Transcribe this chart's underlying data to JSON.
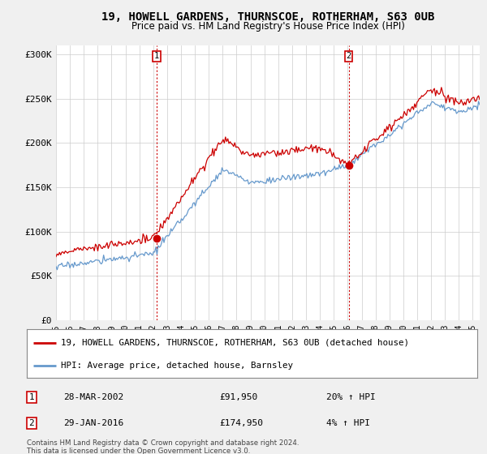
{
  "title": "19, HOWELL GARDENS, THURNSCOE, ROTHERHAM, S63 0UB",
  "subtitle": "Price paid vs. HM Land Registry's House Price Index (HPI)",
  "background_color": "#f0f0f0",
  "plot_bg_color": "#ffffff",
  "ylabel_ticks": [
    "£0",
    "£50K",
    "£100K",
    "£150K",
    "£200K",
    "£250K",
    "£300K"
  ],
  "ytick_values": [
    0,
    50000,
    100000,
    150000,
    200000,
    250000,
    300000
  ],
  "ylim": [
    0,
    310000
  ],
  "xlim_start": 1995.0,
  "xlim_end": 2025.5,
  "sale1_x": 2002.24,
  "sale1_y": 91950,
  "sale2_x": 2016.08,
  "sale2_y": 174950,
  "line1_color": "#cc0000",
  "line2_color": "#6699cc",
  "sale_marker_color": "#cc0000",
  "vline_color": "#cc0000",
  "legend_label1": "19, HOWELL GARDENS, THURNSCOE, ROTHERHAM, S63 0UB (detached house)",
  "legend_label2": "HPI: Average price, detached house, Barnsley",
  "note1_label": "1",
  "note1_date": "28-MAR-2002",
  "note1_price": "£91,950",
  "note1_hpi": "20% ↑ HPI",
  "note2_label": "2",
  "note2_date": "29-JAN-2016",
  "note2_price": "£174,950",
  "note2_hpi": "4% ↑ HPI",
  "footer": "Contains HM Land Registry data © Crown copyright and database right 2024.\nThis data is licensed under the Open Government Licence v3.0.",
  "xtick_years": [
    1995,
    1996,
    1997,
    1998,
    1999,
    2000,
    2001,
    2002,
    2003,
    2004,
    2005,
    2006,
    2007,
    2008,
    2009,
    2010,
    2011,
    2012,
    2013,
    2014,
    2015,
    2016,
    2017,
    2018,
    2019,
    2020,
    2021,
    2022,
    2023,
    2024,
    2025
  ]
}
